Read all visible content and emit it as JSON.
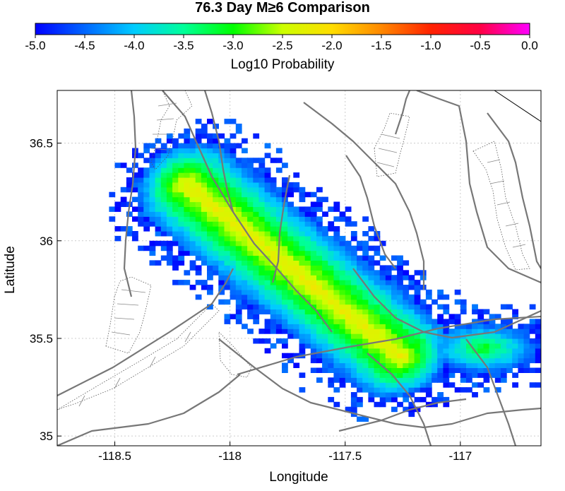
{
  "title": "76.3 Day M≥6 Comparison",
  "colorbar": {
    "label": "Log10 Probability",
    "ticks": [
      "-5.0",
      "-4.5",
      "-4.0",
      "-3.5",
      "-3.0",
      "-2.5",
      "-2.0",
      "-1.5",
      "-1.0",
      "-0.5",
      "0.0"
    ],
    "range": [
      -5.0,
      0.0
    ],
    "colors": [
      "#0000ff",
      "#00aaff",
      "#00ffff",
      "#00ff80",
      "#00ff00",
      "#80ff00",
      "#ffff00",
      "#ffaa00",
      "#ff5500",
      "#ff0000",
      "#ff00ff"
    ]
  },
  "map": {
    "xlabel": "Longitude",
    "ylabel": "Latitude",
    "xlim": [
      -118.75,
      -116.65
    ],
    "ylim": [
      34.95,
      36.77
    ],
    "xticks": [
      "-118.5",
      "-118",
      "-117.5",
      "-117"
    ],
    "yticks": [
      "35",
      "35.5",
      "36",
      "36.5"
    ],
    "grid": true
  },
  "chart_data": {
    "type": "heatmap",
    "title": "76.3 Day M≥6 Comparison",
    "xlabel": "Longitude",
    "ylabel": "Latitude",
    "value_label": "Log10 Probability",
    "value_range": [
      -5.0,
      0.0
    ],
    "trend_axis": {
      "from": [
        -118.2,
        36.3
      ],
      "to": [
        -117.25,
        35.4
      ],
      "peak_log_prob": -2.2
    },
    "secondary_maximum": {
      "at": [
        -117.5,
        35.62
      ],
      "log_prob": -2.4
    }
  },
  "colors": {
    "fault": "#777777",
    "grid": "#cccccc",
    "frame": "#000000"
  }
}
